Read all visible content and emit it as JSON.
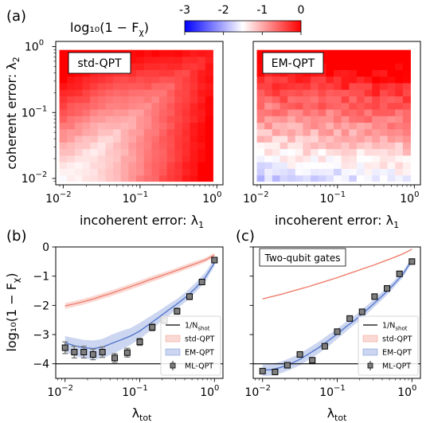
{
  "figure": {
    "panel_labels": [
      "(a)",
      "(b)",
      "(c)"
    ],
    "colorbar": {
      "label": "log₁₀(1 − F",
      "label_sub": "χ",
      "label_end": ")",
      "ticks": [
        "-3",
        "-2",
        "-1",
        "0"
      ],
      "range": [
        -3,
        0
      ],
      "colors": [
        "#0000ff",
        "#ffffff",
        "#ff0000"
      ]
    }
  },
  "chart_data": [
    {
      "type": "heatmap",
      "panel": "(a) left",
      "title": "std-QPT",
      "xlabel": "incoherent error: λ",
      "xlabel_sub": "1",
      "ylabel": "coherent error: λ",
      "ylabel_sub": "2",
      "x_scale": "log",
      "y_scale": "log",
      "xlim": [
        0.008,
        1.2
      ],
      "ylim": [
        0.008,
        1.2
      ],
      "x_ticks": [
        {
          "v": 0.01,
          "b": "10",
          "e": "−2"
        },
        {
          "v": 0.1,
          "b": "10",
          "e": "−1"
        },
        {
          "v": 1,
          "b": "10",
          "e": "0"
        }
      ],
      "y_ticks": [
        {
          "v": 0.01,
          "b": "10",
          "e": "−2"
        },
        {
          "v": 0.1,
          "b": "10",
          "e": "−1"
        },
        {
          "v": 1,
          "b": "10",
          "e": "0"
        }
      ],
      "grid_size": 20,
      "model": "std"
    },
    {
      "type": "heatmap",
      "panel": "(a) right",
      "title": "EM-QPT",
      "xlabel": "incoherent error: λ",
      "xlabel_sub": "1",
      "x_scale": "log",
      "y_scale": "log",
      "xlim": [
        0.008,
        1.2
      ],
      "ylim": [
        0.008,
        1.2
      ],
      "x_ticks": [
        {
          "v": 0.01,
          "b": "10",
          "e": "−2"
        },
        {
          "v": 0.1,
          "b": "10",
          "e": "−1"
        },
        {
          "v": 1,
          "b": "10",
          "e": "0"
        }
      ],
      "grid_size": 20,
      "model": "em"
    },
    {
      "type": "line",
      "panel": "(b)",
      "xlabel": "λ",
      "xlabel_sub": "tot",
      "ylabel": "log₁₀(1 − F",
      "ylabel_sub": "χ",
      "ylabel_end": ")",
      "x_scale": "log",
      "xlim": [
        0.0075,
        1.3
      ],
      "ylim": [
        -4.5,
        0
      ],
      "grid": false,
      "x_ticks": [
        {
          "v": 0.01,
          "b": "10",
          "e": "−2"
        },
        {
          "v": 0.1,
          "b": "10",
          "e": "−1"
        },
        {
          "v": 1,
          "b": "10",
          "e": "0"
        }
      ],
      "y_ticks": [
        0,
        -1,
        -2,
        -3,
        -4
      ],
      "y_tick_labels": [
        "0",
        "−1",
        "−2",
        "−3",
        "−4"
      ],
      "shot_limit": -4,
      "x": [
        0.01,
        0.0133,
        0.0178,
        0.0237,
        0.0316,
        0.0422,
        0.0562,
        0.075,
        0.1,
        0.133,
        0.178,
        0.237,
        0.316,
        0.422,
        0.562,
        0.75,
        1.0
      ],
      "series": [
        {
          "name": "1/N",
          "name_sub": "shot",
          "kind": "hline",
          "y": -4,
          "color": "#000000"
        },
        {
          "name": "std-QPT",
          "kind": "band",
          "color": "#f08070",
          "mean": [
            -2.02,
            -1.95,
            -1.87,
            -1.78,
            -1.68,
            -1.58,
            -1.47,
            -1.36,
            -1.25,
            -1.13,
            -1.02,
            -0.91,
            -0.8,
            -0.68,
            -0.57,
            -0.45,
            -0.28
          ],
          "lower": [
            -2.12,
            -2.05,
            -1.97,
            -1.88,
            -1.78,
            -1.68,
            -1.57,
            -1.46,
            -1.35,
            -1.23,
            -1.12,
            -1.0,
            -0.89,
            -0.77,
            -0.66,
            -0.53,
            -0.36
          ],
          "upper": [
            -1.92,
            -1.85,
            -1.77,
            -1.68,
            -1.58,
            -1.48,
            -1.37,
            -1.26,
            -1.15,
            -1.03,
            -0.92,
            -0.82,
            -0.71,
            -0.59,
            -0.48,
            -0.37,
            -0.2
          ]
        },
        {
          "name": "EM-QPT",
          "kind": "band",
          "color": "#5577cc",
          "mean": [
            -3.28,
            -3.38,
            -3.45,
            -3.48,
            -3.43,
            -3.3,
            -3.18,
            -3.05,
            -2.88,
            -2.65,
            -2.42,
            -2.18,
            -1.95,
            -1.7,
            -1.4,
            -1.05,
            -0.55
          ],
          "lower": [
            -3.6,
            -3.72,
            -3.82,
            -3.85,
            -3.8,
            -3.68,
            -3.52,
            -3.35,
            -3.15,
            -2.9,
            -2.62,
            -2.38,
            -2.12,
            -1.85,
            -1.55,
            -1.2,
            -0.65
          ],
          "upper": [
            -3.05,
            -3.12,
            -3.18,
            -3.2,
            -3.15,
            -3.0,
            -2.88,
            -2.78,
            -2.6,
            -2.4,
            -2.2,
            -1.98,
            -1.78,
            -1.52,
            -1.22,
            -0.88,
            -0.4
          ]
        },
        {
          "name": "ML-QPT",
          "kind": "markers",
          "color": "#7f7f7f",
          "px": [
            0.01,
            0.0133,
            0.0178,
            0.0237,
            0.0316,
            0.0462,
            0.0681,
            0.1,
            0.147,
            0.215,
            0.316,
            0.464,
            0.681,
            1.0
          ],
          "py": [
            -3.45,
            -3.6,
            -3.6,
            -3.68,
            -3.6,
            -3.8,
            -3.62,
            -3.25,
            -2.75,
            -2.52,
            -2.2,
            -1.7,
            -1.2,
            -0.45
          ],
          "err": [
            0.2,
            0.2,
            0.2,
            0.18,
            0.18,
            0.15,
            0.15,
            0.12,
            0.12,
            0.1,
            0.1,
            0.1,
            0.08,
            0.08
          ]
        }
      ],
      "legend": "lower right"
    },
    {
      "type": "line",
      "panel": "(c)",
      "annotation": "Two-qubit gates",
      "xlabel": "λ",
      "xlabel_sub": "tot",
      "x_scale": "log",
      "xlim": [
        0.0075,
        1.3
      ],
      "ylim": [
        -4.5,
        0
      ],
      "grid": false,
      "x_ticks": [
        {
          "v": 0.01,
          "b": "10",
          "e": "−2"
        },
        {
          "v": 0.1,
          "b": "10",
          "e": "−1"
        },
        {
          "v": 1,
          "b": "10",
          "e": "0"
        }
      ],
      "y_ticks": [
        0,
        -1,
        -2,
        -3,
        -4
      ],
      "shot_limit": -4,
      "x": [
        0.01,
        0.0133,
        0.0178,
        0.0237,
        0.0316,
        0.0422,
        0.0562,
        0.075,
        0.1,
        0.133,
        0.178,
        0.237,
        0.316,
        0.422,
        0.562,
        0.75,
        1.0
      ],
      "series": [
        {
          "name": "1/N",
          "name_sub": "shot",
          "kind": "hline",
          "y": -4,
          "color": "#000000"
        },
        {
          "name": "std-QPT",
          "kind": "band",
          "color": "#f08070",
          "mean": [
            -1.78,
            -1.7,
            -1.62,
            -1.53,
            -1.44,
            -1.35,
            -1.25,
            -1.15,
            -1.05,
            -0.94,
            -0.83,
            -0.72,
            -0.61,
            -0.49,
            -0.37,
            -0.24,
            -0.08
          ],
          "lower": [
            -1.8,
            -1.72,
            -1.64,
            -1.55,
            -1.46,
            -1.37,
            -1.27,
            -1.17,
            -1.07,
            -0.96,
            -0.85,
            -0.74,
            -0.63,
            -0.51,
            -0.39,
            -0.26,
            -0.1
          ],
          "upper": [
            -1.76,
            -1.68,
            -1.6,
            -1.51,
            -1.42,
            -1.33,
            -1.23,
            -1.13,
            -1.03,
            -0.92,
            -0.81,
            -0.7,
            -0.59,
            -0.47,
            -0.35,
            -0.22,
            -0.06
          ]
        },
        {
          "name": "EM-QPT",
          "kind": "band",
          "color": "#5577cc",
          "mean": [
            -4.22,
            -4.2,
            -4.12,
            -4.0,
            -3.85,
            -3.65,
            -3.45,
            -3.22,
            -2.98,
            -2.72,
            -2.48,
            -2.2,
            -1.92,
            -1.62,
            -1.3,
            -0.95,
            -0.45
          ],
          "lower": [
            -4.42,
            -4.4,
            -4.32,
            -4.2,
            -4.05,
            -3.85,
            -3.65,
            -3.42,
            -3.15,
            -2.88,
            -2.62,
            -2.35,
            -2.05,
            -1.75,
            -1.42,
            -1.05,
            -0.55
          ],
          "upper": [
            -4.02,
            -4.0,
            -3.92,
            -3.8,
            -3.65,
            -3.45,
            -3.25,
            -3.02,
            -2.8,
            -2.55,
            -2.32,
            -2.05,
            -1.78,
            -1.48,
            -1.18,
            -0.85,
            -0.35
          ]
        },
        {
          "name": "ML-QPT",
          "kind": "markers",
          "color": "#7f7f7f",
          "px": [
            0.01,
            0.0147,
            0.0215,
            0.0316,
            0.0464,
            0.0681,
            0.1,
            0.147,
            0.215,
            0.316,
            0.464,
            0.681,
            1.0
          ],
          "py": [
            -4.25,
            -4.28,
            -4.05,
            -3.68,
            -3.88,
            -3.4,
            -2.9,
            -2.45,
            -2.22,
            -1.7,
            -1.42,
            -0.92,
            -0.5
          ],
          "err": [
            0.08,
            0.08,
            0.08,
            0.08,
            0.08,
            0.08,
            0.06,
            0.06,
            0.06,
            0.06,
            0.05,
            0.05,
            0.05
          ]
        }
      ],
      "legend": "lower right"
    }
  ]
}
